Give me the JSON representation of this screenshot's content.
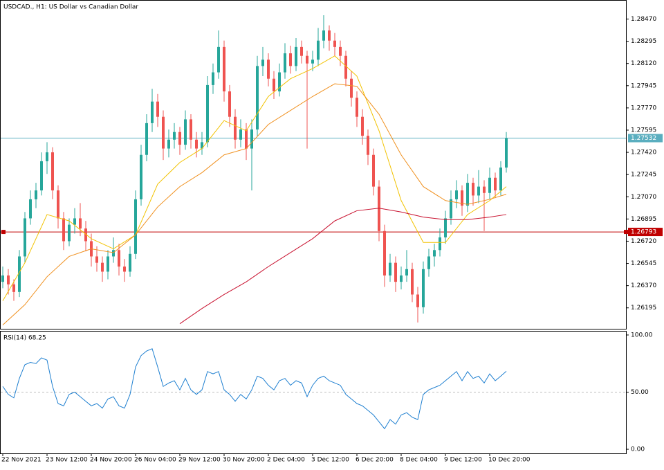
{
  "chart_data": {
    "type": "candlestick",
    "title": "USDCAD., H1:  US Dollar vs Canadian Dollar",
    "categories": [
      "22 Nov 2021",
      null,
      null,
      null,
      null,
      null,
      null,
      null,
      "23 Nov 12:00",
      null,
      null,
      null,
      null,
      null,
      null,
      null,
      "24 Nov 20:00",
      null,
      null,
      null,
      null,
      null,
      null,
      null,
      "26 Nov 04:00",
      null,
      null,
      null,
      null,
      null,
      null,
      null,
      "29 Nov 12:00",
      null,
      null,
      null,
      null,
      null,
      null,
      null,
      "30 Nov 20:00",
      null,
      null,
      null,
      null,
      null,
      null,
      null,
      "2 Dec 04:00",
      null,
      null,
      null,
      null,
      null,
      null,
      null,
      "3 Dec 12:00",
      null,
      null,
      null,
      null,
      null,
      null,
      null,
      "6 Dec 20:00",
      null,
      null,
      null,
      null,
      null,
      null,
      null,
      "8 Dec 04:00",
      null,
      null,
      null,
      null,
      null,
      null,
      null,
      "9 Dec 12:00",
      null,
      null,
      null,
      null,
      null,
      null,
      null,
      "10 Dec 20:00",
      null,
      null,
      null
    ],
    "ohlc": [
      [
        1.264,
        1.2652,
        1.2635,
        1.2645
      ],
      [
        1.2645,
        1.265,
        1.263,
        1.2638
      ],
      [
        1.2638,
        1.2642,
        1.2625,
        1.2632
      ],
      [
        1.2632,
        1.2665,
        1.2628,
        1.266
      ],
      [
        1.266,
        1.2695,
        1.2655,
        1.269
      ],
      [
        1.269,
        1.2712,
        1.2685,
        1.2705
      ],
      [
        1.2705,
        1.2718,
        1.2698,
        1.2712
      ],
      [
        1.2712,
        1.2742,
        1.2708,
        1.2735
      ],
      [
        1.2735,
        1.275,
        1.2725,
        1.2742
      ],
      [
        1.2742,
        1.2746,
        1.2705,
        1.2712
      ],
      [
        1.2712,
        1.2716,
        1.2682,
        1.269
      ],
      [
        1.269,
        1.2695,
        1.2665,
        1.2672
      ],
      [
        1.2672,
        1.269,
        1.2668,
        1.2685
      ],
      [
        1.2685,
        1.2698,
        1.2678,
        1.269
      ],
      [
        1.269,
        1.2702,
        1.2676,
        1.2682
      ],
      [
        1.2682,
        1.2688,
        1.2664,
        1.2672
      ],
      [
        1.2672,
        1.2678,
        1.2652,
        1.266
      ],
      [
        1.266,
        1.2668,
        1.2648,
        1.2655
      ],
      [
        1.2655,
        1.266,
        1.264,
        1.2648
      ],
      [
        1.2648,
        1.2665,
        1.2642,
        1.266
      ],
      [
        1.266,
        1.2675,
        1.2655,
        1.2665
      ],
      [
        1.2665,
        1.267,
        1.2645,
        1.2652
      ],
      [
        1.2652,
        1.2658,
        1.264,
        1.2648
      ],
      [
        1.2648,
        1.2668,
        1.2644,
        1.2662
      ],
      [
        1.2662,
        1.2712,
        1.2658,
        1.2705
      ],
      [
        1.2705,
        1.2748,
        1.27,
        1.274
      ],
      [
        1.274,
        1.2772,
        1.2735,
        1.2765
      ],
      [
        1.2765,
        1.2792,
        1.2758,
        1.2782
      ],
      [
        1.2782,
        1.2788,
        1.2762,
        1.277
      ],
      [
        1.277,
        1.2775,
        1.2736,
        1.2745
      ],
      [
        1.2745,
        1.276,
        1.2738,
        1.2752
      ],
      [
        1.2752,
        1.2765,
        1.2745,
        1.2758
      ],
      [
        1.2758,
        1.2762,
        1.274,
        1.2748
      ],
      [
        1.2748,
        1.2775,
        1.2744,
        1.2768
      ],
      [
        1.2768,
        1.2772,
        1.2745,
        1.2752
      ],
      [
        1.2752,
        1.2758,
        1.2738,
        1.2745
      ],
      [
        1.2745,
        1.2758,
        1.274,
        1.275
      ],
      [
        1.275,
        1.2802,
        1.2746,
        1.2795
      ],
      [
        1.2795,
        1.2812,
        1.2788,
        1.2805
      ],
      [
        1.2805,
        1.2838,
        1.28,
        1.2825
      ],
      [
        1.2825,
        1.283,
        1.2782,
        1.279
      ],
      [
        1.279,
        1.2795,
        1.2762,
        1.277
      ],
      [
        1.277,
        1.2776,
        1.2745,
        1.2752
      ],
      [
        1.2752,
        1.2768,
        1.2746,
        1.276
      ],
      [
        1.276,
        1.2765,
        1.2736,
        1.2745
      ],
      [
        1.2745,
        1.2768,
        1.2712,
        1.276
      ],
      [
        1.276,
        1.2818,
        1.2755,
        1.281
      ],
      [
        1.281,
        1.2825,
        1.2802,
        1.2815
      ],
      [
        1.2815,
        1.282,
        1.2794,
        1.28
      ],
      [
        1.28,
        1.2806,
        1.2784,
        1.279
      ],
      [
        1.279,
        1.2812,
        1.2786,
        1.2805
      ],
      [
        1.2805,
        1.2828,
        1.28,
        1.282
      ],
      [
        1.282,
        1.2826,
        1.2804,
        1.281
      ],
      [
        1.281,
        1.2832,
        1.2806,
        1.2825
      ],
      [
        1.2825,
        1.283,
        1.2812,
        1.2818
      ],
      [
        1.2818,
        1.2822,
        1.2745,
        1.2812
      ],
      [
        1.2812,
        1.2822,
        1.2806,
        1.2815
      ],
      [
        1.2815,
        1.284,
        1.281,
        1.283
      ],
      [
        1.283,
        1.285,
        1.2824,
        1.2838
      ],
      [
        1.2838,
        1.2842,
        1.2822,
        1.283
      ],
      [
        1.283,
        1.2836,
        1.2818,
        1.2825
      ],
      [
        1.2825,
        1.283,
        1.281,
        1.2818
      ],
      [
        1.2818,
        1.2822,
        1.2794,
        1.28
      ],
      [
        1.28,
        1.2806,
        1.2778,
        1.2785
      ],
      [
        1.2785,
        1.279,
        1.2762,
        1.277
      ],
      [
        1.277,
        1.2776,
        1.2748,
        1.2755
      ],
      [
        1.2755,
        1.276,
        1.2732,
        1.274
      ],
      [
        1.274,
        1.2745,
        1.2708,
        1.2715
      ],
      [
        1.2715,
        1.272,
        1.2672,
        1.268
      ],
      [
        1.268,
        1.2685,
        1.2636,
        1.2645
      ],
      [
        1.2645,
        1.2662,
        1.264,
        1.2655
      ],
      [
        1.2655,
        1.266,
        1.2632,
        1.264
      ],
      [
        1.264,
        1.2652,
        1.2634,
        1.2645
      ],
      [
        1.2645,
        1.2665,
        1.264,
        1.265
      ],
      [
        1.265,
        1.2655,
        1.2624,
        1.263
      ],
      [
        1.263,
        1.2636,
        1.2608,
        1.262
      ],
      [
        1.262,
        1.2656,
        1.2615,
        1.265
      ],
      [
        1.265,
        1.2666,
        1.2644,
        1.266
      ],
      [
        1.266,
        1.267,
        1.2652,
        1.2665
      ],
      [
        1.2665,
        1.2682,
        1.266,
        1.2675
      ],
      [
        1.2675,
        1.2696,
        1.267,
        1.269
      ],
      [
        1.269,
        1.2712,
        1.2685,
        1.2705
      ],
      [
        1.2705,
        1.272,
        1.2698,
        1.2712
      ],
      [
        1.2712,
        1.2716,
        1.2692,
        1.27
      ],
      [
        1.27,
        1.2725,
        1.2695,
        1.2718
      ],
      [
        1.2718,
        1.2722,
        1.27,
        1.2708
      ],
      [
        1.2708,
        1.2728,
        1.2702,
        1.2715
      ],
      [
        1.2715,
        1.272,
        1.268,
        1.271
      ],
      [
        1.271,
        1.273,
        1.2705,
        1.2722
      ],
      [
        1.2722,
        1.2726,
        1.2706,
        1.2712
      ],
      [
        1.2712,
        1.2735,
        1.2708,
        1.273
      ],
      [
        1.273,
        1.2758,
        1.2726,
        1.2753
      ]
    ],
    "up_color": "#26a69a",
    "down_color": "#ef5350",
    "ylim": [
      1.2603,
      1.2862
    ],
    "yticks": [
      {
        "value": 1.2847,
        "label": "1.28470"
      },
      1.28295,
      {
        "value": 1.2812,
        "label": "1.28120"
      },
      1.27945,
      {
        "value": 1.2777,
        "label": "1.27770"
      },
      1.27595,
      {
        "value": 1.2742,
        "label": "1.27420"
      },
      1.27245,
      {
        "value": 1.2707,
        "label": "1.27070"
      },
      1.26895,
      {
        "value": 1.2672,
        "label": "1.26720"
      },
      1.26545,
      {
        "value": 1.2637,
        "label": "1.26370"
      },
      1.26195
    ],
    "ma": {
      "x": [
        0,
        4,
        8,
        12,
        16,
        20,
        24,
        28,
        32,
        36,
        40,
        44,
        48,
        52,
        56,
        60,
        64,
        68,
        72,
        76,
        80,
        84,
        88,
        91
      ],
      "series": [
        {
          "color": "#f2c200",
          "values": [
            1.2625,
            1.2655,
            1.2693,
            1.2688,
            1.2674,
            1.2666,
            1.2677,
            1.2717,
            1.2734,
            1.2745,
            1.2767,
            1.2759,
            1.2786,
            1.28,
            1.2808,
            1.2818,
            1.2802,
            1.2759,
            1.2704,
            1.2671,
            1.2671,
            1.2693,
            1.2704,
            1.2715
          ]
        },
        {
          "color": "#f0901e",
          "values": [
            1.2606,
            1.2622,
            1.2644,
            1.266,
            1.2666,
            1.2663,
            1.2677,
            1.2699,
            1.2715,
            1.2726,
            1.274,
            1.2745,
            1.2764,
            1.2775,
            1.2786,
            1.2796,
            1.2794,
            1.2772,
            1.274,
            1.2715,
            1.2704,
            1.2701,
            1.2705,
            1.2709
          ]
        },
        {
          "color": "#c8102e",
          "values": [
            null,
            null,
            null,
            null,
            null,
            null,
            null,
            null,
            1.2607,
            1.2619,
            1.263,
            1.264,
            1.2652,
            1.2663,
            1.2674,
            1.2688,
            1.2696,
            1.2698,
            1.2695,
            1.2691,
            1.2689,
            1.2689,
            1.2691,
            1.2693
          ]
        }
      ]
    },
    "price_lines": [
      {
        "value": 1.27532,
        "color": "#5aaebf"
      },
      {
        "value": 1.26793,
        "color": "#c00000"
      }
    ],
    "rsi": {
      "title": "RSI(14) 68.25",
      "color": "#1e7fd0",
      "values": [
        55,
        48,
        45,
        62,
        74,
        76,
        75,
        80,
        78,
        55,
        40,
        38,
        48,
        50,
        46,
        42,
        38,
        40,
        36,
        44,
        46,
        38,
        36,
        48,
        72,
        82,
        86,
        88,
        72,
        55,
        58,
        60,
        52,
        62,
        52,
        48,
        52,
        68,
        66,
        68,
        52,
        48,
        42,
        48,
        44,
        52,
        64,
        62,
        56,
        52,
        60,
        62,
        56,
        60,
        58,
        46,
        56,
        62,
        64,
        60,
        58,
        56,
        48,
        44,
        40,
        38,
        34,
        30,
        24,
        18,
        26,
        22,
        30,
        32,
        28,
        26,
        48,
        52,
        54,
        56,
        60,
        64,
        68,
        60,
        68,
        62,
        64,
        58,
        66,
        60,
        64,
        68.25
      ],
      "ylim": [
        -3.6,
        103.6
      ],
      "yticks": [
        {
          "value": 100,
          "label": "100.00"
        },
        {
          "value": 50,
          "label": "50.00"
        },
        {
          "value": 0,
          "label": "0.00"
        }
      ],
      "levels": [
        50
      ]
    }
  }
}
